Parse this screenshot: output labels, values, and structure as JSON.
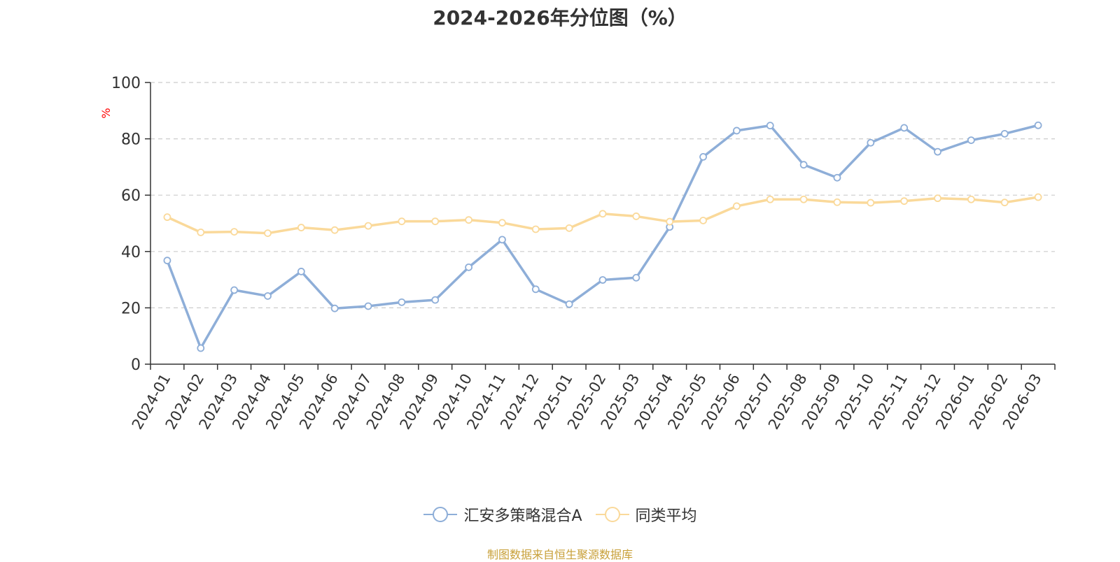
{
  "chart_data": {
    "type": "line",
    "title": "2024-2026年分位图（%）",
    "ylabel": "%",
    "ylim": [
      0,
      100
    ],
    "yticks": [
      "0",
      "20",
      "40",
      "60",
      "80",
      "100"
    ],
    "grid": true,
    "legend_position": "bottom",
    "categories": [
      "2024-01",
      "2024-02",
      "2024-03",
      "2024-04",
      "2024-05",
      "2024-06",
      "2024-07",
      "2024-08",
      "2024-09",
      "2024-10",
      "2024-11",
      "2024-12",
      "2025-01",
      "2025-02",
      "2025-03",
      "2025-04",
      "2025-05",
      "2025-06",
      "2025-07",
      "2025-08",
      "2025-09",
      "2025-10",
      "2025-11",
      "2025-12",
      "2026-01",
      "2026-02",
      "2026-03"
    ],
    "series": [
      {
        "name": "汇安多策略混合A",
        "color": "#8eaed8",
        "values": [
          36.8,
          5.7,
          26.3,
          24.2,
          32.9,
          19.8,
          20.6,
          22.0,
          22.8,
          34.4,
          44.2,
          26.6,
          21.3,
          29.9,
          30.7,
          48.7,
          73.6,
          82.9,
          84.7,
          70.8,
          66.2,
          78.6,
          83.9,
          75.4,
          79.5,
          81.8,
          84.8
        ]
      },
      {
        "name": "同类平均",
        "color": "#fad99a",
        "values": [
          52.2,
          46.8,
          47.0,
          46.5,
          48.5,
          47.6,
          49.1,
          50.7,
          50.7,
          51.2,
          50.2,
          47.9,
          48.3,
          53.4,
          52.5,
          50.6,
          51.0,
          56.1,
          58.5,
          58.5,
          57.5,
          57.3,
          57.9,
          58.9,
          58.5,
          57.4,
          59.3
        ]
      }
    ]
  },
  "footer": {
    "source": "制图数据来自恒生聚源数据库"
  },
  "colors": {
    "axis": "#333333",
    "grid": "#cccccc",
    "ylabel": "#ff0000"
  }
}
